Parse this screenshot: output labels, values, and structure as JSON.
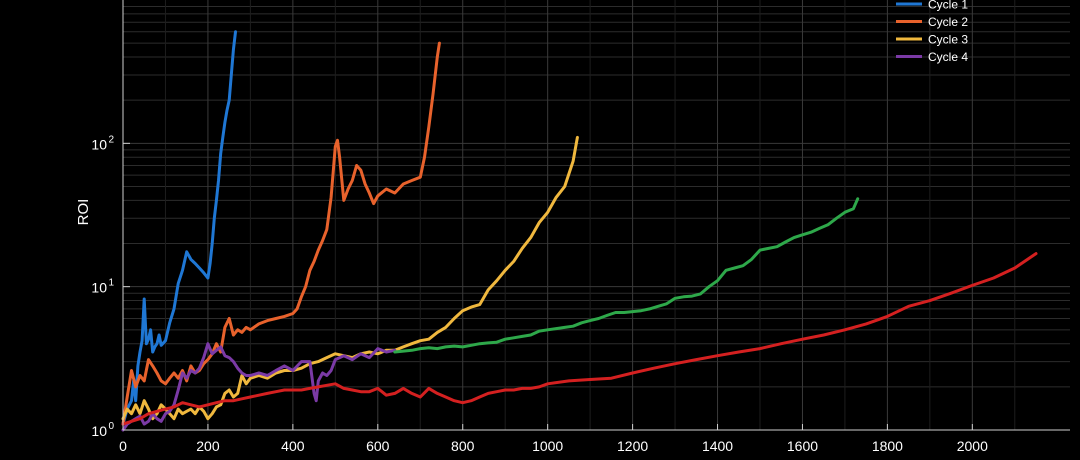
{
  "chart_data": {
    "type": "line",
    "title": "",
    "xlabel": "",
    "ylabel": "ROI",
    "y_scale": "log",
    "xlim": [
      0,
      2230
    ],
    "ylim": [
      1,
      1000
    ],
    "grid": "on (major and minor)",
    "legend_position": "top-right",
    "background_color": "#000000",
    "axis_color": "#d0d0d0",
    "x_ticks": [
      {
        "value": 0,
        "label": "0"
      },
      {
        "value": 200,
        "label": "200"
      },
      {
        "value": 400,
        "label": "400"
      },
      {
        "value": 600,
        "label": "600"
      },
      {
        "value": 800,
        "label": "800"
      },
      {
        "value": 1000,
        "label": "1000"
      },
      {
        "value": 1200,
        "label": "1200"
      },
      {
        "value": 1400,
        "label": "1400"
      },
      {
        "value": 1600,
        "label": "1600"
      },
      {
        "value": 1800,
        "label": "1800"
      },
      {
        "value": 2000,
        "label": "2000"
      }
    ],
    "y_ticks": [
      {
        "value": 1,
        "base": "10",
        "exp": "0"
      },
      {
        "value": 10,
        "base": "10",
        "exp": "1"
      },
      {
        "value": 100,
        "base": "10",
        "exp": "2"
      }
    ],
    "series": [
      {
        "name": "Cycle 1",
        "color": "#1f77d4",
        "x": [
          0,
          10,
          20,
          25,
          30,
          35,
          40,
          45,
          50,
          55,
          60,
          65,
          70,
          75,
          80,
          85,
          90,
          100,
          110,
          120,
          130,
          140,
          150,
          160,
          170,
          180,
          190,
          200,
          205,
          210,
          215,
          220,
          225,
          230,
          235,
          240,
          245,
          250,
          255,
          260,
          265
        ],
        "y": [
          1.1,
          1.4,
          1.6,
          2.2,
          1.6,
          2.8,
          3.5,
          4.2,
          8.2,
          4.0,
          4.3,
          5.0,
          3.5,
          3.8,
          4.0,
          4.6,
          3.9,
          4.2,
          5.6,
          7.0,
          10.5,
          13.0,
          17.5,
          15.5,
          14.5,
          13.5,
          12.5,
          11.5,
          14.5,
          20.0,
          30.0,
          40.0,
          55.0,
          85.0,
          110.0,
          140.0,
          170.0,
          200.0,
          300.0,
          450.0,
          600.0
        ]
      },
      {
        "name": "Cycle 2",
        "color": "#e8622c",
        "x": [
          0,
          10,
          20,
          30,
          40,
          50,
          60,
          70,
          80,
          90,
          100,
          110,
          120,
          130,
          140,
          150,
          160,
          170,
          180,
          190,
          200,
          210,
          220,
          230,
          240,
          250,
          260,
          270,
          280,
          290,
          300,
          320,
          340,
          360,
          380,
          400,
          410,
          420,
          430,
          440,
          450,
          460,
          470,
          480,
          490,
          500,
          505,
          510,
          520,
          530,
          540,
          550,
          560,
          570,
          580,
          590,
          600,
          620,
          640,
          660,
          680,
          700,
          710,
          720,
          730,
          740,
          745
        ],
        "y": [
          1.1,
          1.7,
          2.6,
          2.0,
          2.4,
          2.2,
          3.1,
          2.8,
          2.5,
          2.2,
          2.1,
          2.3,
          2.5,
          2.3,
          2.6,
          2.2,
          2.8,
          2.5,
          2.6,
          2.9,
          3.1,
          3.4,
          4.0,
          3.5,
          5.2,
          6.0,
          4.6,
          5.0,
          4.8,
          5.2,
          5.0,
          5.5,
          5.8,
          6.0,
          6.2,
          6.5,
          7.0,
          8.5,
          10.0,
          13.0,
          15.0,
          18.0,
          21.0,
          25.0,
          42.0,
          95.0,
          105.0,
          80.0,
          40.0,
          48.0,
          55.0,
          70.0,
          65.0,
          52.0,
          45.0,
          38.0,
          43.0,
          48.0,
          45.0,
          52.0,
          55.0,
          58.0,
          80.0,
          130.0,
          220.0,
          400.0,
          500.0
        ]
      },
      {
        "name": "Cycle 3",
        "color": "#f0b83e",
        "x": [
          0,
          10,
          20,
          30,
          40,
          50,
          60,
          70,
          80,
          90,
          100,
          110,
          120,
          130,
          140,
          150,
          160,
          170,
          180,
          190,
          200,
          210,
          220,
          230,
          240,
          250,
          260,
          270,
          280,
          290,
          300,
          320,
          340,
          360,
          380,
          400,
          420,
          440,
          460,
          480,
          500,
          520,
          540,
          560,
          580,
          600,
          620,
          640,
          660,
          680,
          700,
          720,
          740,
          760,
          780,
          800,
          820,
          840,
          860,
          880,
          900,
          920,
          940,
          960,
          980,
          1000,
          1020,
          1040,
          1060,
          1070
        ],
        "y": [
          1.2,
          1.4,
          1.3,
          1.5,
          1.3,
          1.6,
          1.4,
          1.2,
          1.3,
          1.5,
          1.4,
          1.3,
          1.2,
          1.4,
          1.3,
          1.35,
          1.4,
          1.3,
          1.45,
          1.35,
          1.2,
          1.3,
          1.45,
          1.5,
          1.8,
          1.9,
          1.7,
          1.8,
          2.4,
          2.1,
          2.3,
          2.4,
          2.3,
          2.5,
          2.6,
          2.6,
          2.7,
          2.9,
          3.0,
          3.2,
          3.4,
          3.3,
          3.2,
          3.4,
          3.5,
          3.4,
          3.6,
          3.6,
          3.8,
          4.0,
          4.2,
          4.3,
          4.8,
          5.2,
          6.0,
          6.8,
          7.2,
          7.5,
          9.5,
          11.0,
          13.0,
          15.0,
          18.5,
          22.0,
          28.0,
          33.0,
          42.0,
          50.0,
          75.0,
          110.0
        ]
      },
      {
        "name": "Cycle 4",
        "color": "#7b3aa6",
        "x": [
          0,
          10,
          20,
          30,
          40,
          50,
          60,
          70,
          80,
          90,
          100,
          110,
          120,
          130,
          140,
          150,
          160,
          170,
          180,
          190,
          200,
          210,
          220,
          230,
          240,
          250,
          260,
          270,
          280,
          290,
          300,
          320,
          340,
          360,
          380,
          400,
          420,
          440,
          450,
          455,
          460,
          470,
          480,
          490,
          500,
          520,
          540,
          560,
          580,
          600,
          620,
          640
        ],
        "y": [
          1.0,
          1.1,
          1.15,
          1.2,
          1.25,
          1.1,
          1.15,
          1.3,
          1.2,
          1.15,
          1.3,
          1.35,
          1.5,
          1.9,
          2.5,
          2.3,
          2.6,
          2.5,
          2.7,
          3.2,
          4.0,
          3.4,
          3.6,
          3.8,
          3.3,
          3.2,
          3.0,
          2.7,
          2.5,
          2.4,
          2.4,
          2.5,
          2.4,
          2.6,
          2.8,
          2.6,
          3.0,
          3.0,
          1.8,
          1.6,
          2.2,
          2.5,
          2.4,
          2.6,
          3.1,
          3.3,
          3.1,
          3.4,
          3.2,
          3.7,
          3.5,
          3.6
        ]
      },
      {
        "name": "",
        "color": "#2ea84a",
        "x": [
          640,
          660,
          680,
          700,
          720,
          740,
          760,
          780,
          800,
          820,
          840,
          860,
          880,
          900,
          920,
          940,
          960,
          980,
          1000,
          1020,
          1040,
          1060,
          1080,
          1100,
          1120,
          1140,
          1160,
          1180,
          1200,
          1220,
          1240,
          1260,
          1280,
          1300,
          1320,
          1340,
          1360,
          1380,
          1400,
          1420,
          1440,
          1460,
          1480,
          1500,
          1520,
          1540,
          1560,
          1580,
          1600,
          1620,
          1640,
          1660,
          1680,
          1700,
          1720,
          1730
        ],
        "y": [
          3.5,
          3.55,
          3.6,
          3.7,
          3.75,
          3.7,
          3.8,
          3.85,
          3.8,
          3.9,
          4.0,
          4.05,
          4.1,
          4.3,
          4.4,
          4.5,
          4.6,
          4.9,
          5.0,
          5.1,
          5.2,
          5.3,
          5.6,
          5.8,
          6.0,
          6.3,
          6.6,
          6.6,
          6.7,
          6.8,
          7.0,
          7.3,
          7.6,
          8.3,
          8.5,
          8.6,
          8.9,
          10.0,
          11.0,
          13.0,
          13.5,
          14.0,
          15.5,
          18.0,
          18.5,
          19.0,
          20.5,
          22.0,
          23.0,
          24.0,
          25.5,
          27.0,
          30.0,
          33.0,
          35.0,
          41.0
        ]
      },
      {
        "name": "",
        "color": "#d42020",
        "x": [
          0,
          20,
          40,
          60,
          80,
          100,
          120,
          140,
          160,
          180,
          200,
          220,
          240,
          260,
          280,
          300,
          320,
          340,
          360,
          380,
          400,
          420,
          440,
          460,
          480,
          500,
          520,
          540,
          560,
          580,
          600,
          620,
          640,
          660,
          680,
          700,
          720,
          740,
          760,
          780,
          800,
          820,
          840,
          860,
          880,
          900,
          920,
          940,
          960,
          980,
          1000,
          1050,
          1100,
          1150,
          1200,
          1250,
          1300,
          1350,
          1400,
          1450,
          1500,
          1550,
          1600,
          1650,
          1700,
          1750,
          1800,
          1850,
          1900,
          1950,
          2000,
          2050,
          2100,
          2150
        ],
        "y": [
          1.1,
          1.15,
          1.2,
          1.3,
          1.35,
          1.4,
          1.45,
          1.55,
          1.5,
          1.45,
          1.5,
          1.55,
          1.6,
          1.6,
          1.65,
          1.7,
          1.75,
          1.8,
          1.85,
          1.9,
          1.9,
          1.9,
          1.95,
          2.0,
          2.05,
          2.1,
          1.95,
          1.9,
          1.85,
          1.85,
          1.95,
          1.75,
          1.8,
          1.95,
          1.8,
          1.7,
          1.95,
          1.8,
          1.7,
          1.6,
          1.55,
          1.6,
          1.7,
          1.8,
          1.85,
          1.9,
          1.9,
          1.95,
          1.95,
          2.0,
          2.1,
          2.2,
          2.25,
          2.3,
          2.5,
          2.7,
          2.9,
          3.1,
          3.3,
          3.5,
          3.7,
          4.0,
          4.3,
          4.6,
          5.0,
          5.5,
          6.2,
          7.3,
          8.0,
          9.0,
          10.2,
          11.5,
          13.5,
          17.0
        ]
      }
    ]
  }
}
